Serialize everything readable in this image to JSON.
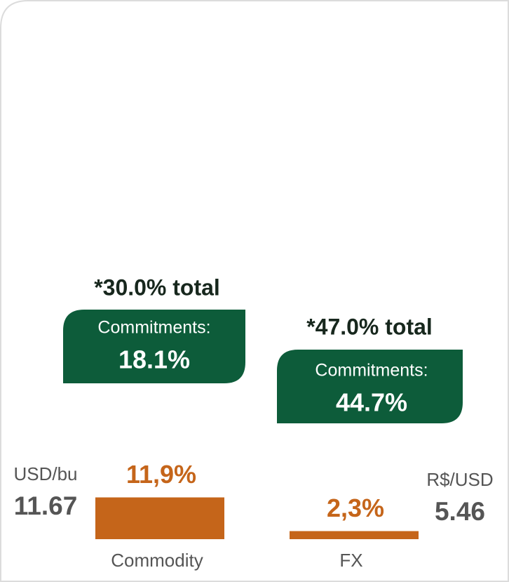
{
  "chart_data": {
    "type": "bar",
    "categories": [
      "Commodity",
      "FX"
    ],
    "values": [
      11.9,
      2.3
    ],
    "value_labels": [
      "11,9%",
      "2,3%"
    ],
    "color": "#c5651a",
    "panels": [
      {
        "unit": "USD/bu",
        "price": 11.67,
        "total": "*30.0% total",
        "commitments_label": "Commitments:",
        "commitments": "18.1%"
      },
      {
        "unit": "R$/USD",
        "price": 5.46,
        "total": "*47.0% total",
        "commitments_label": "Commitments:",
        "commitments": "44.7%"
      }
    ]
  }
}
